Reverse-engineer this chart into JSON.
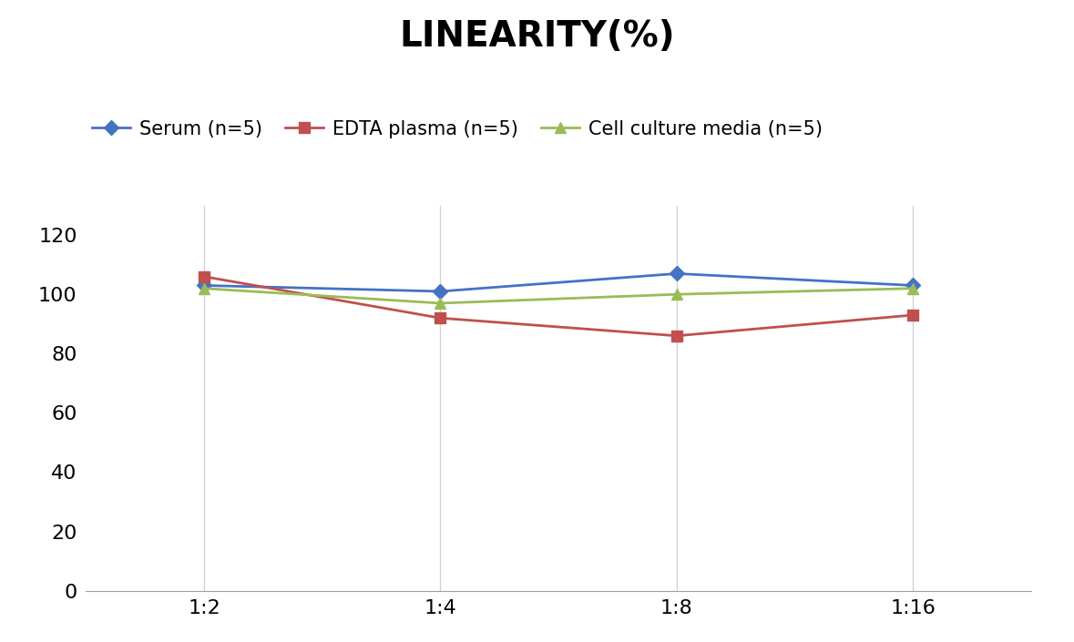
{
  "title": "LINEARITY(%)",
  "x_labels": [
    "1:2",
    "1:4",
    "1:8",
    "1:16"
  ],
  "x_values": [
    0,
    1,
    2,
    3
  ],
  "series": [
    {
      "label": "Serum (n=5)",
      "values": [
        103,
        101,
        107,
        103
      ],
      "color": "#4472C4",
      "marker": "D",
      "linewidth": 2.0,
      "markersize": 8
    },
    {
      "label": "EDTA plasma (n=5)",
      "values": [
        106,
        92,
        86,
        93
      ],
      "color": "#C0504D",
      "marker": "s",
      "linewidth": 2.0,
      "markersize": 8
    },
    {
      "label": "Cell culture media (n=5)",
      "values": [
        102,
        97,
        100,
        102
      ],
      "color": "#9BBB59",
      "marker": "^",
      "linewidth": 2.0,
      "markersize": 8
    }
  ],
  "ylim": [
    0,
    130
  ],
  "yticks": [
    0,
    20,
    40,
    60,
    80,
    100,
    120
  ],
  "background_color": "#ffffff",
  "grid_color": "#d3d3d3",
  "title_fontsize": 28,
  "tick_fontsize": 16,
  "legend_fontsize": 15
}
